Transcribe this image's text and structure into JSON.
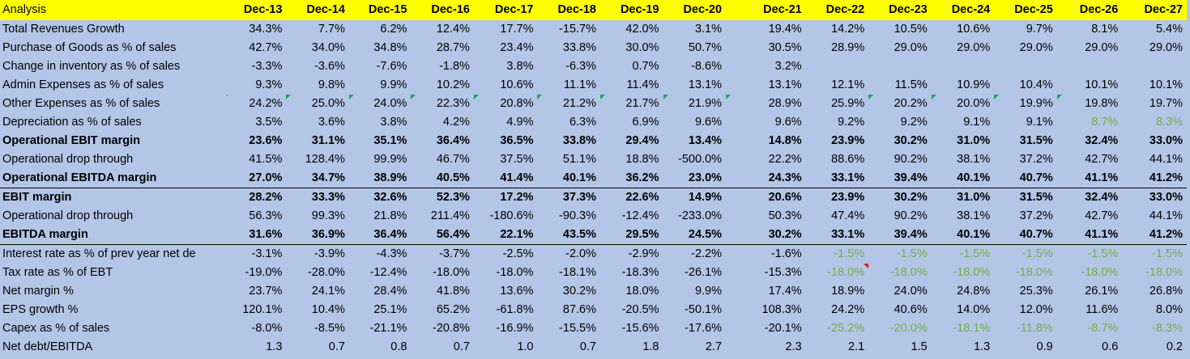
{
  "header": {
    "title": "Analysis",
    "periods": [
      "Dec-13",
      "Dec-14",
      "Dec-15",
      "Dec-16",
      "Dec-17",
      "Dec-18",
      "Dec-19",
      "Dec-20",
      "Dec-21",
      "Dec-22",
      "Dec-23",
      "Dec-24",
      "Dec-25",
      "Dec-26",
      "Dec-27"
    ]
  },
  "colors": {
    "header_bg": "#ffff00",
    "sheet_bg": "#b4c6e7",
    "forecast_green": "#70ad47",
    "comment_green": "#00b050",
    "comment_red": "#ff0000"
  },
  "rows": [
    {
      "label": "Total Revenues Growth",
      "values": [
        "34.3%",
        "7.7%",
        "6.2%",
        "12.4%",
        "17.7%",
        "-15.7%",
        "42.0%",
        "3.1%",
        "19.4%",
        "14.2%",
        "10.5%",
        "10.6%",
        "9.7%",
        "8.1%",
        "5.4%"
      ]
    },
    {
      "label": "Purchase of Goods as % of sales",
      "values": [
        "42.7%",
        "34.0%",
        "34.8%",
        "28.7%",
        "23.4%",
        "33.8%",
        "30.0%",
        "50.7%",
        "30.5%",
        "28.9%",
        "29.0%",
        "29.0%",
        "29.0%",
        "29.0%",
        "29.0%"
      ]
    },
    {
      "label": "Change in inventory as % of sales",
      "values": [
        "-3.3%",
        "-3.6%",
        "-7.6%",
        "-1.8%",
        "3.8%",
        "-6.3%",
        "0.7%",
        "-8.6%",
        "3.2%",
        "",
        "",
        "",
        "",
        "",
        ""
      ]
    },
    {
      "label": "Admin Expenses as % of sales",
      "values": [
        "9.3%",
        "9.8%",
        "9.9%",
        "10.2%",
        "10.6%",
        "11.1%",
        "11.4%",
        "13.1%",
        "13.1%",
        "12.1%",
        "11.5%",
        "10.9%",
        "10.4%",
        "10.1%",
        "10.1%"
      ]
    },
    {
      "label": "Other Expenses as % of sales",
      "values": [
        "24.2%",
        "25.0%",
        "24.0%",
        "22.3%",
        "20.8%",
        "21.2%",
        "21.7%",
        "21.9%",
        "28.9%",
        "25.9%",
        "20.2%",
        "20.0%",
        "19.9%",
        "19.8%",
        "19.7%"
      ]
    },
    {
      "label": "Depreciation as % of sales",
      "values": [
        "3.5%",
        "3.6%",
        "3.8%",
        "4.2%",
        "4.9%",
        "6.3%",
        "6.9%",
        "9.6%",
        "9.6%",
        "9.2%",
        "9.2%",
        "9.1%",
        "9.1%",
        "8.7%",
        "8.3%"
      ]
    },
    {
      "label": "Operational EBIT margin",
      "values": [
        "23.6%",
        "31.1%",
        "35.1%",
        "36.4%",
        "36.5%",
        "33.8%",
        "29.4%",
        "13.4%",
        "14.8%",
        "23.9%",
        "30.2%",
        "31.0%",
        "31.5%",
        "32.4%",
        "33.0%"
      ]
    },
    {
      "label": "Operational drop through",
      "values": [
        "41.5%",
        "128.4%",
        "99.9%",
        "46.7%",
        "37.5%",
        "51.1%",
        "18.8%",
        "-500.0%",
        "22.2%",
        "88.6%",
        "90.2%",
        "38.1%",
        "37.2%",
        "42.7%",
        "44.1%"
      ]
    },
    {
      "label": "Operational EBITDA margin",
      "values": [
        "27.0%",
        "34.7%",
        "38.9%",
        "40.5%",
        "41.4%",
        "40.1%",
        "36.2%",
        "23.0%",
        "24.3%",
        "33.1%",
        "39.4%",
        "40.1%",
        "40.7%",
        "41.1%",
        "41.2%"
      ]
    },
    {
      "label": "EBIT margin",
      "values": [
        "28.2%",
        "33.3%",
        "32.6%",
        "52.3%",
        "17.2%",
        "37.3%",
        "22.6%",
        "14.9%",
        "20.6%",
        "23.9%",
        "30.2%",
        "31.0%",
        "31.5%",
        "32.4%",
        "33.0%"
      ]
    },
    {
      "label": "Operational drop through",
      "values": [
        "56.3%",
        "99.3%",
        "21.8%",
        "211.4%",
        "-180.6%",
        "-90.3%",
        "-12.4%",
        "-233.0%",
        "50.3%",
        "47.4%",
        "90.2%",
        "38.1%",
        "37.2%",
        "42.7%",
        "44.1%"
      ]
    },
    {
      "label": "EBITDA margin",
      "values": [
        "31.6%",
        "36.9%",
        "36.4%",
        "56.4%",
        "22.1%",
        "43.5%",
        "29.5%",
        "24.5%",
        "30.2%",
        "33.1%",
        "39.4%",
        "40.1%",
        "40.7%",
        "41.1%",
        "41.2%"
      ]
    },
    {
      "label": "Interest rate as % of prev year net de",
      "values": [
        "-3.1%",
        "-3.9%",
        "-4.3%",
        "-3.7%",
        "-2.5%",
        "-2.0%",
        "-2.9%",
        "-2.2%",
        "-1.6%",
        "-1.5%",
        "-1.5%",
        "-1.5%",
        "-1.5%",
        "-1.5%",
        "-1.5%"
      ]
    },
    {
      "label": "Tax rate as % of EBT",
      "values": [
        "-19.0%",
        "-28.0%",
        "-12.4%",
        "-18.0%",
        "-18.0%",
        "-18.1%",
        "-18.3%",
        "-26.1%",
        "-15.3%",
        "-18.0%",
        "-18.0%",
        "-18.0%",
        "-18.0%",
        "-18.0%",
        "-18.0%"
      ]
    },
    {
      "label": "Net margin %",
      "values": [
        "23.7%",
        "24.1%",
        "28.4%",
        "41.8%",
        "13.6%",
        "30.2%",
        "18.0%",
        "9.9%",
        "17.4%",
        "18.9%",
        "24.0%",
        "24.8%",
        "25.3%",
        "26.1%",
        "26.8%"
      ]
    },
    {
      "label": "EPS growth %",
      "values": [
        "120.1%",
        "10.4%",
        "25.1%",
        "65.2%",
        "-61.8%",
        "87.6%",
        "-20.5%",
        "-50.1%",
        "108.3%",
        "24.2%",
        "40.6%",
        "14.0%",
        "12.0%",
        "11.6%",
        "8.0%"
      ]
    },
    {
      "label": "Capex as % of sales",
      "values": [
        "-8.0%",
        "-8.5%",
        "-21.1%",
        "-20.8%",
        "-16.9%",
        "-15.5%",
        "-15.6%",
        "-17.6%",
        "-20.1%",
        "-25.2%",
        "-20.0%",
        "-18.1%",
        "-11.8%",
        "-8.7%",
        "-8.3%"
      ]
    },
    {
      "label": "Net debt/EBITDA",
      "values": [
        "1.3",
        "0.7",
        "0.8",
        "0.7",
        "1.0",
        "0.7",
        "1.8",
        "2.7",
        "2.3",
        "2.1",
        "1.5",
        "1.3",
        "0.9",
        "0.6",
        "0.2"
      ]
    }
  ]
}
